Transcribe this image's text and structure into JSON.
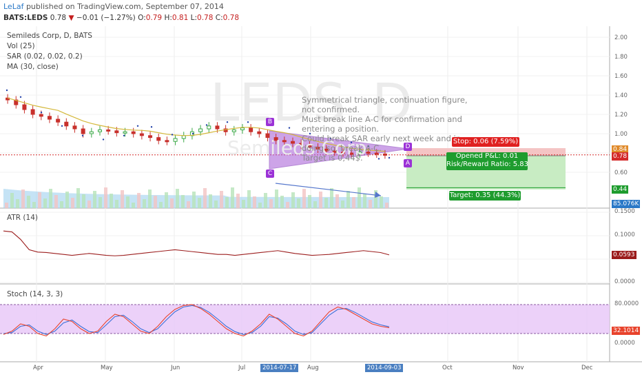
{
  "header": {
    "author": "LeLaf",
    "published_text": "published on TradingView.com, September 07, 2014",
    "symbol": "BATS:LEDS",
    "last": "0.78",
    "change_arrow": "▼",
    "change": "−0.01 (−1.27%)",
    "o_label": "O:",
    "o": "0.79",
    "h_label": "H:",
    "h": "0.81",
    "l_label": "L:",
    "l": "0.78",
    "c_label": "C:",
    "c": "0.78"
  },
  "watermark": {
    "ticker": "LEDS",
    "ticker_end": "D",
    "name": "Semileds Corp"
  },
  "legend": {
    "title": "Semileds Corp, D, BATS",
    "vol": "Vol (25)",
    "sar": "SAR (0.02, 0.02, 0.2)",
    "ma": "MA (30, close)",
    "atr": "ATR (14)",
    "stoch": "Stoch (14, 3, 3)"
  },
  "annotation": {
    "lines": [
      "Symmetrical triangle, continuation figure, not confirmed.",
      "Must break line A-C for confirmation and entering a position.",
      "Could break SAR early next week and in doing so, break A-C.",
      "Target is 0,44$."
    ]
  },
  "position": {
    "stop": "Stop: 0.06 (7.59%)",
    "pnl": "Opened P&L: 0.01",
    "rr": "Risk/Reward Ratio: 5.83",
    "target": "Target: 0.35 (44.3%)"
  },
  "points": {
    "a": "A",
    "b": "B",
    "c": "C",
    "d": "D"
  },
  "price_axis": [
    "2.00",
    "1.80",
    "1.60",
    "1.40",
    "1.20",
    "1.00",
    "0.80",
    "0.60",
    "0.40"
  ],
  "price_tags": {
    "stop": "0.84",
    "last": "0.78",
    "target": "0.44",
    "volume": "85.076K"
  },
  "atr_axis": [
    "0.1500",
    "0.1000",
    "0.0500",
    "0.0000"
  ],
  "atr_tag": "0.0593",
  "stoch_axis": [
    "80.0000",
    "40.0000",
    "0.0000"
  ],
  "stoch_tag": "32.1014",
  "time_axis": [
    "Apr",
    "May",
    "Jun",
    "Jul",
    "Aug",
    "Oct",
    "Nov",
    "Dec"
  ],
  "time_marks": {
    "start": "2014-07-17",
    "end": "2014-09-03"
  },
  "colors": {
    "up": "#39a845",
    "down": "#c8312c",
    "ma": "#d4b83a",
    "sar": "#1f3fa8",
    "triangle": "#a55ad6",
    "stop_zone": "#f4c4c4",
    "target_zone": "#c8ecc3",
    "atr": "#9b1c1c",
    "stoch_k": "#e8432c",
    "stoch_d": "#3a70d8",
    "stoch_band": "#e7c6f7",
    "volume": "#9fd0ef"
  },
  "chart_data": {
    "type": "candlestick",
    "x": [
      "2014-03-18",
      "2014-09-05"
    ],
    "ylim": [
      0.4,
      2.0
    ],
    "price_path": [
      1.35,
      1.3,
      1.25,
      1.2,
      1.18,
      1.15,
      1.12,
      1.08,
      1.05,
      1.0,
      1.02,
      1.04,
      1.03,
      1.01,
      1.02,
      1.0,
      0.98,
      0.96,
      0.93,
      0.92,
      0.95,
      0.98,
      1.02,
      1.05,
      1.08,
      1.05,
      1.02,
      1.04,
      1.06,
      1.02,
      1.0,
      0.96,
      0.93,
      0.92,
      0.9,
      0.88,
      0.86,
      0.84,
      0.82,
      0.81,
      0.8,
      0.79,
      0.81,
      0.8,
      0.79,
      0.78
    ],
    "stop_level": 0.84,
    "last": 0.78,
    "target_level": 0.44,
    "atr": [
      0.11,
      0.108,
      0.092,
      0.07,
      0.065,
      0.064,
      0.062,
      0.06,
      0.058,
      0.06,
      0.062,
      0.06,
      0.058,
      0.057,
      0.058,
      0.06,
      0.062,
      0.064,
      0.066,
      0.068,
      0.07,
      0.068,
      0.066,
      0.064,
      0.062,
      0.06,
      0.06,
      0.058,
      0.06,
      0.062,
      0.064,
      0.066,
      0.068,
      0.065,
      0.062,
      0.06,
      0.058,
      0.059,
      0.06,
      0.062,
      0.064,
      0.066,
      0.068,
      0.066,
      0.064,
      0.059
    ],
    "stoch_k": [
      18,
      25,
      40,
      35,
      20,
      15,
      30,
      50,
      45,
      30,
      20,
      25,
      45,
      60,
      55,
      40,
      25,
      20,
      35,
      55,
      70,
      78,
      80,
      72,
      60,
      45,
      30,
      20,
      15,
      25,
      40,
      60,
      50,
      35,
      20,
      15,
      25,
      45,
      65,
      75,
      70,
      60,
      50,
      40,
      35,
      32
    ],
    "stoch_d": [
      20,
      22,
      35,
      38,
      25,
      18,
      25,
      42,
      48,
      35,
      24,
      22,
      38,
      55,
      58,
      45,
      30,
      22,
      30,
      48,
      65,
      75,
      78,
      74,
      64,
      50,
      35,
      24,
      18,
      22,
      35,
      55,
      52,
      40,
      25,
      18,
      22,
      40,
      58,
      70,
      72,
      64,
      54,
      44,
      38,
      34
    ]
  }
}
